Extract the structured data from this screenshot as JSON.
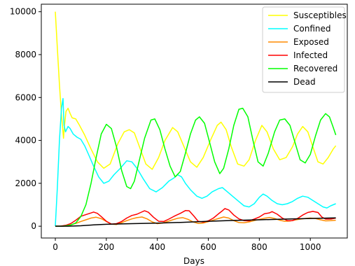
{
  "chart_data": {
    "type": "line",
    "title": "",
    "xlabel": "Days",
    "ylabel": "",
    "xlim": [
      -55,
      1145
    ],
    "ylim": [
      -550,
      10350
    ],
    "xticks": [
      0,
      200,
      400,
      600,
      800,
      1000
    ],
    "yticks": [
      0,
      2000,
      4000,
      6000,
      8000,
      10000
    ],
    "grid": false,
    "legend_position": "top-right",
    "series": [
      {
        "name": "Susceptibles",
        "color": "#ffff00",
        "points": [
          [
            0,
            10000
          ],
          [
            8,
            8300
          ],
          [
            16,
            6600
          ],
          [
            24,
            5200
          ],
          [
            32,
            4100
          ],
          [
            36,
            4700
          ],
          [
            42,
            5350
          ],
          [
            50,
            5500
          ],
          [
            58,
            5250
          ],
          [
            66,
            5050
          ],
          [
            80,
            5000
          ],
          [
            95,
            4700
          ],
          [
            115,
            4250
          ],
          [
            140,
            3600
          ],
          [
            165,
            3000
          ],
          [
            190,
            2700
          ],
          [
            215,
            2900
          ],
          [
            245,
            3850
          ],
          [
            270,
            4400
          ],
          [
            290,
            4500
          ],
          [
            310,
            4350
          ],
          [
            330,
            3700
          ],
          [
            355,
            2900
          ],
          [
            380,
            2650
          ],
          [
            405,
            3200
          ],
          [
            430,
            4000
          ],
          [
            460,
            4600
          ],
          [
            480,
            4400
          ],
          [
            505,
            3700
          ],
          [
            530,
            3000
          ],
          [
            555,
            2750
          ],
          [
            580,
            3200
          ],
          [
            610,
            4050
          ],
          [
            635,
            4700
          ],
          [
            650,
            4850
          ],
          [
            670,
            4500
          ],
          [
            690,
            3700
          ],
          [
            715,
            2900
          ],
          [
            740,
            2800
          ],
          [
            760,
            3100
          ],
          [
            785,
            4000
          ],
          [
            810,
            4700
          ],
          [
            830,
            4400
          ],
          [
            855,
            3600
          ],
          [
            880,
            3100
          ],
          [
            905,
            3200
          ],
          [
            930,
            3700
          ],
          [
            950,
            4300
          ],
          [
            970,
            4650
          ],
          [
            990,
            4400
          ],
          [
            1010,
            3700
          ],
          [
            1030,
            3000
          ],
          [
            1050,
            2900
          ],
          [
            1070,
            3200
          ],
          [
            1090,
            3600
          ],
          [
            1100,
            3750
          ]
        ]
      },
      {
        "name": "Confined",
        "color": "#00ffff",
        "points": [
          [
            0,
            0
          ],
          [
            8,
            1800
          ],
          [
            16,
            4000
          ],
          [
            24,
            5500
          ],
          [
            30,
            5950
          ],
          [
            34,
            4700
          ],
          [
            40,
            4400
          ],
          [
            50,
            4650
          ],
          [
            58,
            4550
          ],
          [
            70,
            4300
          ],
          [
            85,
            4150
          ],
          [
            100,
            4050
          ],
          [
            115,
            3750
          ],
          [
            130,
            3350
          ],
          [
            150,
            2800
          ],
          [
            170,
            2300
          ],
          [
            190,
            2000
          ],
          [
            210,
            2100
          ],
          [
            230,
            2400
          ],
          [
            255,
            2700
          ],
          [
            280,
            3050
          ],
          [
            300,
            3000
          ],
          [
            320,
            2700
          ],
          [
            345,
            2200
          ],
          [
            370,
            1750
          ],
          [
            395,
            1600
          ],
          [
            420,
            1800
          ],
          [
            445,
            2100
          ],
          [
            465,
            2250
          ],
          [
            480,
            2400
          ],
          [
            495,
            2300
          ],
          [
            510,
            2000
          ],
          [
            530,
            1700
          ],
          [
            555,
            1400
          ],
          [
            575,
            1300
          ],
          [
            595,
            1400
          ],
          [
            615,
            1600
          ],
          [
            640,
            1750
          ],
          [
            655,
            1800
          ],
          [
            675,
            1600
          ],
          [
            700,
            1350
          ],
          [
            720,
            1150
          ],
          [
            740,
            950
          ],
          [
            760,
            900
          ],
          [
            780,
            1050
          ],
          [
            800,
            1350
          ],
          [
            815,
            1500
          ],
          [
            830,
            1400
          ],
          [
            850,
            1200
          ],
          [
            870,
            1050
          ],
          [
            890,
            1000
          ],
          [
            910,
            1050
          ],
          [
            930,
            1150
          ],
          [
            950,
            1300
          ],
          [
            970,
            1400
          ],
          [
            990,
            1350
          ],
          [
            1010,
            1200
          ],
          [
            1030,
            1050
          ],
          [
            1050,
            900
          ],
          [
            1065,
            850
          ],
          [
            1080,
            950
          ],
          [
            1100,
            1050
          ]
        ]
      },
      {
        "name": "Exposed",
        "color": "#ff8c00",
        "points": [
          [
            0,
            0
          ],
          [
            20,
            0
          ],
          [
            40,
            20
          ],
          [
            60,
            60
          ],
          [
            80,
            130
          ],
          [
            100,
            220
          ],
          [
            120,
            300
          ],
          [
            140,
            380
          ],
          [
            160,
            420
          ],
          [
            180,
            350
          ],
          [
            200,
            220
          ],
          [
            220,
            100
          ],
          [
            240,
            80
          ],
          [
            260,
            160
          ],
          [
            280,
            260
          ],
          [
            300,
            340
          ],
          [
            320,
            400
          ],
          [
            340,
            430
          ],
          [
            360,
            340
          ],
          [
            380,
            200
          ],
          [
            400,
            120
          ],
          [
            420,
            150
          ],
          [
            440,
            220
          ],
          [
            460,
            300
          ],
          [
            480,
            370
          ],
          [
            500,
            400
          ],
          [
            520,
            320
          ],
          [
            540,
            200
          ],
          [
            560,
            130
          ],
          [
            580,
            150
          ],
          [
            600,
            210
          ],
          [
            620,
            290
          ],
          [
            640,
            360
          ],
          [
            660,
            430
          ],
          [
            680,
            380
          ],
          [
            700,
            260
          ],
          [
            720,
            170
          ],
          [
            740,
            160
          ],
          [
            760,
            200
          ],
          [
            780,
            260
          ],
          [
            800,
            320
          ],
          [
            820,
            370
          ],
          [
            840,
            410
          ],
          [
            860,
            360
          ],
          [
            880,
            280
          ],
          [
            900,
            230
          ],
          [
            920,
            240
          ],
          [
            940,
            290
          ],
          [
            960,
            330
          ],
          [
            980,
            360
          ],
          [
            1000,
            380
          ],
          [
            1020,
            360
          ],
          [
            1040,
            300
          ],
          [
            1060,
            250
          ],
          [
            1080,
            260
          ],
          [
            1100,
            280
          ]
        ]
      },
      {
        "name": "Infected",
        "color": "#ff0000",
        "points": [
          [
            0,
            0
          ],
          [
            20,
            0
          ],
          [
            40,
            40
          ],
          [
            60,
            120
          ],
          [
            80,
            280
          ],
          [
            100,
            460
          ],
          [
            120,
            540
          ],
          [
            135,
            600
          ],
          [
            150,
            660
          ],
          [
            165,
            600
          ],
          [
            180,
            450
          ],
          [
            200,
            230
          ],
          [
            220,
            100
          ],
          [
            240,
            120
          ],
          [
            260,
            220
          ],
          [
            280,
            380
          ],
          [
            300,
            500
          ],
          [
            320,
            560
          ],
          [
            335,
            640
          ],
          [
            350,
            720
          ],
          [
            365,
            650
          ],
          [
            385,
            420
          ],
          [
            405,
            230
          ],
          [
            425,
            220
          ],
          [
            445,
            330
          ],
          [
            465,
            460
          ],
          [
            490,
            600
          ],
          [
            510,
            730
          ],
          [
            525,
            720
          ],
          [
            545,
            450
          ],
          [
            560,
            230
          ],
          [
            580,
            190
          ],
          [
            600,
            250
          ],
          [
            620,
            380
          ],
          [
            640,
            580
          ],
          [
            655,
            720
          ],
          [
            665,
            820
          ],
          [
            680,
            760
          ],
          [
            700,
            520
          ],
          [
            720,
            340
          ],
          [
            740,
            260
          ],
          [
            760,
            250
          ],
          [
            780,
            330
          ],
          [
            800,
            430
          ],
          [
            820,
            580
          ],
          [
            840,
            620
          ],
          [
            850,
            680
          ],
          [
            870,
            560
          ],
          [
            890,
            380
          ],
          [
            910,
            260
          ],
          [
            930,
            260
          ],
          [
            950,
            360
          ],
          [
            970,
            520
          ],
          [
            990,
            640
          ],
          [
            1010,
            690
          ],
          [
            1030,
            640
          ],
          [
            1045,
            430
          ],
          [
            1060,
            330
          ],
          [
            1080,
            330
          ],
          [
            1100,
            380
          ]
        ]
      },
      {
        "name": "Recovered",
        "color": "#00ff00",
        "points": [
          [
            0,
            0
          ],
          [
            30,
            0
          ],
          [
            60,
            50
          ],
          [
            80,
            150
          ],
          [
            100,
            450
          ],
          [
            120,
            1000
          ],
          [
            140,
            2000
          ],
          [
            160,
            3200
          ],
          [
            180,
            4300
          ],
          [
            200,
            4750
          ],
          [
            220,
            4550
          ],
          [
            240,
            3700
          ],
          [
            260,
            2600
          ],
          [
            280,
            1850
          ],
          [
            295,
            1750
          ],
          [
            310,
            2100
          ],
          [
            330,
            3100
          ],
          [
            350,
            4100
          ],
          [
            375,
            4950
          ],
          [
            390,
            5000
          ],
          [
            410,
            4500
          ],
          [
            430,
            3600
          ],
          [
            450,
            2800
          ],
          [
            470,
            2300
          ],
          [
            490,
            2550
          ],
          [
            510,
            3400
          ],
          [
            530,
            4300
          ],
          [
            550,
            4950
          ],
          [
            565,
            5100
          ],
          [
            585,
            4800
          ],
          [
            605,
            3900
          ],
          [
            625,
            3000
          ],
          [
            645,
            2450
          ],
          [
            660,
            2700
          ],
          [
            680,
            3600
          ],
          [
            700,
            4700
          ],
          [
            720,
            5450
          ],
          [
            735,
            5500
          ],
          [
            755,
            5100
          ],
          [
            775,
            4000
          ],
          [
            795,
            3000
          ],
          [
            815,
            2800
          ],
          [
            835,
            3400
          ],
          [
            860,
            4400
          ],
          [
            880,
            4950
          ],
          [
            900,
            5000
          ],
          [
            920,
            4700
          ],
          [
            940,
            3900
          ],
          [
            960,
            3100
          ],
          [
            980,
            2950
          ],
          [
            1000,
            3350
          ],
          [
            1020,
            4200
          ],
          [
            1040,
            4950
          ],
          [
            1060,
            5250
          ],
          [
            1075,
            5100
          ],
          [
            1090,
            4600
          ],
          [
            1100,
            4250
          ]
        ]
      },
      {
        "name": "Dead",
        "color": "#000000",
        "points": [
          [
            0,
            0
          ],
          [
            50,
            0
          ],
          [
            100,
            20
          ],
          [
            150,
            60
          ],
          [
            200,
            90
          ],
          [
            300,
            120
          ],
          [
            400,
            145
          ],
          [
            500,
            180
          ],
          [
            600,
            230
          ],
          [
            700,
            270
          ],
          [
            800,
            300
          ],
          [
            900,
            330
          ],
          [
            1000,
            360
          ],
          [
            1100,
            390
          ]
        ]
      }
    ]
  }
}
